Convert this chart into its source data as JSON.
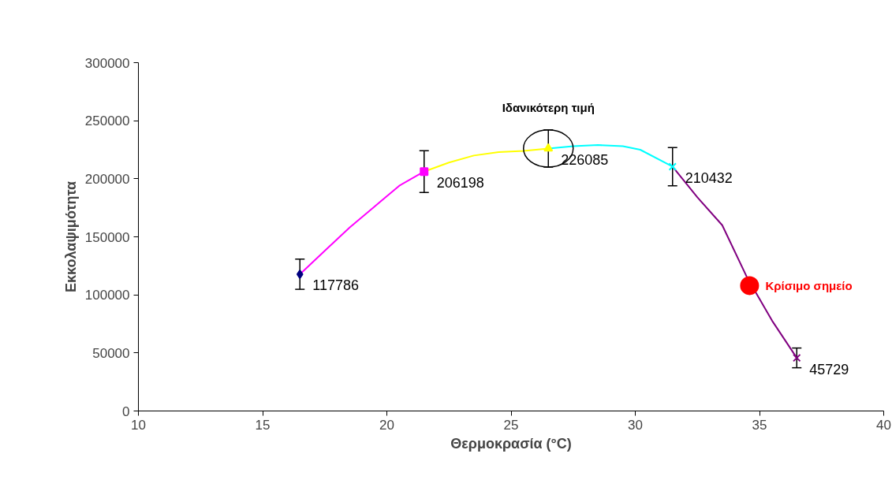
{
  "chart_data": {
    "type": "line",
    "xlabel": "Θερμοκρασία (°C)",
    "ylabel": "Εκκολαψιμότητα",
    "xlim": [
      10,
      40
    ],
    "xticks": [
      10,
      15,
      20,
      25,
      30,
      35,
      40
    ],
    "ylim": [
      0,
      300000
    ],
    "yticks": [
      0,
      50000,
      100000,
      150000,
      200000,
      250000,
      300000
    ],
    "grid": false,
    "line_style": "solid",
    "annotations": [
      "Ιδανικότερη τιμή"
    ],
    "series": [
      {
        "color": "#ff00ff",
        "x": [
          16.5,
          17.5,
          18.5,
          19.5,
          20.5,
          21.5
        ],
        "values": [
          117786,
          138000,
          158000,
          176000,
          194000,
          206198
        ]
      },
      {
        "color": "#ffff00",
        "x": [
          21.5,
          22.5,
          23.5,
          24.5,
          25.5,
          26.5
        ],
        "values": [
          206198,
          214000,
          220000,
          223000,
          224000,
          226085
        ]
      },
      {
        "color": "#00ffff",
        "x": [
          26.5,
          27.5,
          28.5,
          29.5,
          30.2,
          31.5
        ],
        "values": [
          226085,
          228000,
          229000,
          228000,
          225000,
          210432
        ]
      },
      {
        "color": "#800080",
        "x": [
          31.5,
          32.5,
          33.5,
          34.5,
          35.5,
          36.5
        ],
        "values": [
          210432,
          184000,
          160000,
          115000,
          78000,
          45729
        ]
      },
      {
        "type": "scatter",
        "color": "#000080",
        "marker": "diamond",
        "x": [
          16.5
        ],
        "values": [
          117786
        ],
        "errors": [
          13000
        ],
        "data_labels": true
      },
      {
        "type": "scatter",
        "color": "#ff00ff",
        "marker": "square",
        "x": [
          21.5
        ],
        "values": [
          206198
        ],
        "errors": [
          18000
        ],
        "data_labels": true
      },
      {
        "type": "scatter",
        "color": "#ffff00",
        "marker": "triangle",
        "x": [
          26.5
        ],
        "values": [
          226085
        ],
        "errors": [
          16000
        ],
        "data_labels": true
      },
      {
        "type": "scatter",
        "color": "#00ffff",
        "marker": "cross",
        "x": [
          31.5
        ],
        "values": [
          210432
        ],
        "errors": [
          16500
        ],
        "data_labels": true
      },
      {
        "type": "scatter",
        "color": "#800080",
        "marker": "cross",
        "x": [
          36.5
        ],
        "values": [
          45729
        ],
        "errors": [
          8500
        ],
        "data_labels": true
      },
      {
        "type": "scatter",
        "color": "#ff0000",
        "marker": "circle",
        "name": "Κρίσιμο σημείο",
        "x": [
          34.6
        ],
        "values": [
          108000
        ]
      }
    ]
  }
}
